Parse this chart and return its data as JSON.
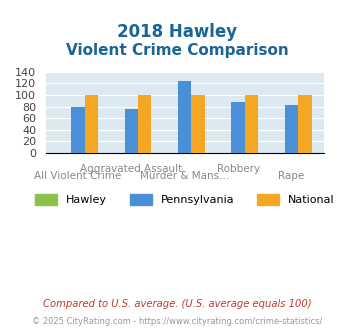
{
  "title_line1": "2018 Hawley",
  "title_line2": "Violent Crime Comparison",
  "categories": [
    [
      "All Violent Crime",
      "Aggravated Assault"
    ],
    [
      "Murder & Mans...",
      "Robbery"
    ],
    [
      "",
      "Rape"
    ]
  ],
  "x_labels_top": [
    "Aggravated Assault",
    "Assault",
    "Robbery",
    ""
  ],
  "x_labels_bottom": [
    "All Violent Crime",
    "Murder & Mans...",
    "",
    "Rape"
  ],
  "groups": [
    "All Violent Crime",
    "Aggravated Assault",
    "Murder & Mans...",
    "Robbery",
    "Rape"
  ],
  "hawley": [
    0,
    0,
    0,
    0,
    0
  ],
  "pennsylvania": [
    80,
    76,
    124,
    88,
    82
  ],
  "national": [
    100,
    100,
    100,
    100,
    100
  ],
  "bar_color_hawley": "#8bc34a",
  "bar_color_pennsylvania": "#4a90d9",
  "bar_color_national": "#f5a623",
  "ylim": [
    0,
    140
  ],
  "yticks": [
    0,
    20,
    40,
    60,
    80,
    100,
    120,
    140
  ],
  "background_color": "#dce9f0",
  "title_color": "#1a6496",
  "xlabel_top_labels": [
    "Aggravated Assault",
    "Robbery"
  ],
  "xlabel_bottom_labels": [
    "All Violent Crime",
    "Murder & Mans...",
    "Rape"
  ],
  "legend_hawley": "Hawley",
  "legend_pennsylvania": "Pennsylvania",
  "legend_national": "National",
  "footnote1": "Compared to U.S. average. (U.S. average equals 100)",
  "footnote2": "© 2025 CityRating.com - https://www.cityrating.com/crime-statistics/",
  "footnote1_color": "#c0392b",
  "footnote2_color": "#999999"
}
